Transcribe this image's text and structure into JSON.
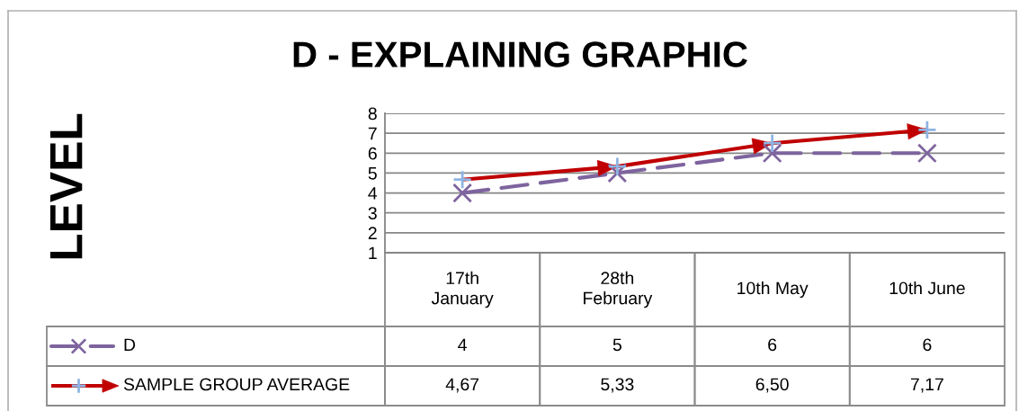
{
  "chart_data": {
    "type": "line",
    "title": "D - EXPLAINING GRAPHIC",
    "annotations": [
      "LEVEL"
    ],
    "categories": [
      "17th January",
      "28th February",
      "10th May",
      "10th June"
    ],
    "ylim": [
      1,
      8
    ],
    "yticks": [
      1,
      2,
      3,
      4,
      5,
      6,
      7,
      8
    ],
    "grid": "y",
    "legend": "bottom",
    "series": [
      {
        "name": "D",
        "color": "#7e649e",
        "values": [
          4,
          5,
          6,
          6
        ],
        "value_labels": [
          "4",
          "5",
          "6",
          "6"
        ],
        "marker": "cross",
        "line_style": "dashed"
      },
      {
        "name": "SAMPLE GROUP AVERAGE",
        "color": "#c00000",
        "colors": [
          "#8eb4e3",
          "#8eb4e3",
          "#8eb4e3",
          "#8eb4e3"
        ],
        "values": [
          4.67,
          5.33,
          6.5,
          7.17
        ],
        "value_labels": [
          "4,67",
          "5,33",
          "6,50",
          "7,17"
        ],
        "marker": "plus",
        "line_style": "solid"
      }
    ]
  }
}
